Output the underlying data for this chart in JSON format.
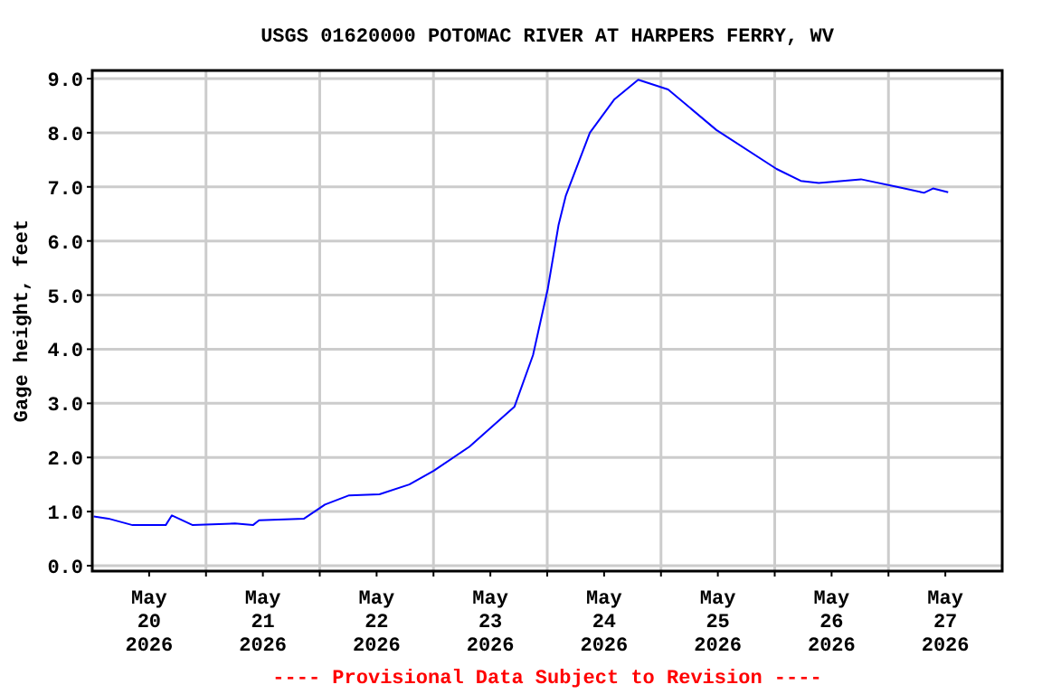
{
  "chart_data": {
    "type": "line",
    "title": "USGS 01620000 POTOMAC RIVER AT HARPERS FERRY, WV",
    "ylabel": "Gage height, feet",
    "annotations": [
      "---- Provisional Data Subject to Revision ----"
    ],
    "x": [
      "2026-05-20T00:18",
      "2026-05-20T03:24",
      "2026-05-20T08:30",
      "2026-05-20T15:30",
      "2026-05-20T16:48",
      "2026-05-20T21:12",
      "2026-05-21T06:06",
      "2026-05-21T09:54",
      "2026-05-21T11:12",
      "2026-05-21T20:42",
      "2026-05-22T01:06",
      "2026-05-22T06:12",
      "2026-05-22T12:36",
      "2026-05-22T18:54",
      "2026-05-23T00:00",
      "2026-05-23T07:36",
      "2026-05-23T17:06",
      "2026-05-23T21:00",
      "2026-05-24T00:06",
      "2026-05-24T02:24",
      "2026-05-24T03:54",
      "2026-05-24T09:00",
      "2026-05-24T14:06",
      "2026-05-24T19:12",
      "2026-05-25T01:30",
      "2026-05-25T11:42",
      "2026-05-26T00:24",
      "2026-05-26T05:30",
      "2026-05-26T09:18",
      "2026-05-26T18:12",
      "2026-05-27T01:48",
      "2026-05-27T07:30",
      "2026-05-27T09:24",
      "2026-05-27T12:36"
    ],
    "series": [
      {
        "color": "#0000ff",
        "values": [
          0.91,
          0.87,
          0.75,
          0.75,
          0.93,
          0.75,
          0.78,
          0.75,
          0.84,
          0.87,
          1.13,
          1.3,
          1.32,
          1.5,
          1.75,
          2.2,
          2.94,
          3.89,
          5.11,
          6.3,
          6.83,
          8.0,
          8.61,
          8.98,
          8.8,
          8.05,
          7.33,
          7.11,
          7.07,
          7.14,
          7.0,
          6.89,
          6.97,
          6.9
        ]
      }
    ],
    "xlim": [
      "2026-05-20T00:00",
      "2026-05-28T00:00"
    ],
    "xticks": [
      {
        "value": "2026-05-20T12:00",
        "label": "May\n20\n2026"
      },
      {
        "value": "2026-05-21T00:00",
        "label": null
      },
      {
        "value": "2026-05-21T12:00",
        "label": "May\n21\n2026"
      },
      {
        "value": "2026-05-22T00:00",
        "label": null
      },
      {
        "value": "2026-05-22T12:00",
        "label": "May\n22\n2026"
      },
      {
        "value": "2026-05-23T00:00",
        "label": null
      },
      {
        "value": "2026-05-23T12:00",
        "label": "May\n23\n2026"
      },
      {
        "value": "2026-05-24T00:00",
        "label": null
      },
      {
        "value": "2026-05-24T12:00",
        "label": "May\n24\n2026"
      },
      {
        "value": "2026-05-25T00:00",
        "label": null
      },
      {
        "value": "2026-05-25T12:00",
        "label": "May\n25\n2026"
      },
      {
        "value": "2026-05-26T00:00",
        "label": null
      },
      {
        "value": "2026-05-26T12:00",
        "label": "May\n26\n2026"
      },
      {
        "value": "2026-05-27T00:00",
        "label": null
      },
      {
        "value": "2026-05-27T12:00",
        "label": "May\n27\n2026"
      }
    ],
    "ylim": [
      -0.1,
      9.15
    ],
    "yticks": [
      {
        "value": 0,
        "label": "0.0"
      },
      {
        "value": 1,
        "label": "1.0"
      },
      {
        "value": 2,
        "label": "2.0"
      },
      {
        "value": 3,
        "label": "3.0"
      },
      {
        "value": 4,
        "label": "4.0"
      },
      {
        "value": 5,
        "label": "5.0"
      },
      {
        "value": 6,
        "label": "6.0"
      },
      {
        "value": 7,
        "label": "7.0"
      },
      {
        "value": 8,
        "label": "8.0"
      },
      {
        "value": 9,
        "label": "9.0"
      }
    ],
    "grid": true,
    "marker": "none",
    "line_style": "solid"
  }
}
